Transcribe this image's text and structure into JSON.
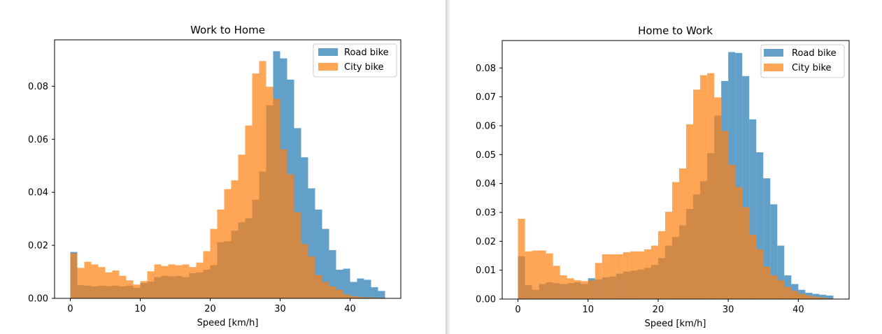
{
  "chart_data": [
    {
      "type": "histogram",
      "title": "Work to Home",
      "xlabel": "Speed [km/h]",
      "ylabel": "",
      "xlim": [
        -2.25,
        47.25
      ],
      "ylim": [
        0,
        0.0975
      ],
      "xticks": [
        0,
        10,
        20,
        30,
        40
      ],
      "yticks": [
        0.0,
        0.02,
        0.04,
        0.06,
        0.08
      ],
      "ytick_labels": [
        "0.00",
        "0.02",
        "0.04",
        "0.06",
        "0.08"
      ],
      "bin_start": 0,
      "bin_width": 1,
      "legend_position": "top-right",
      "series": [
        {
          "name": "Road bike",
          "color": "#1f77b4",
          "opacity": 0.7,
          "values": [
            0.0175,
            0.005,
            0.0048,
            0.0045,
            0.0048,
            0.0046,
            0.0048,
            0.0045,
            0.0048,
            0.004,
            0.0058,
            0.0063,
            0.008,
            0.0085,
            0.0083,
            0.0085,
            0.008,
            0.0095,
            0.0098,
            0.0108,
            0.0125,
            0.0212,
            0.0215,
            0.0255,
            0.0287,
            0.0302,
            0.0372,
            0.0478,
            0.0728,
            0.0932,
            0.0905,
            0.0825,
            0.0642,
            0.0532,
            0.0415,
            0.0335,
            0.0262,
            0.0182,
            0.0108,
            0.0112,
            0.0062,
            0.0075,
            0.007,
            0.0042,
            0.0028
          ]
        },
        {
          "name": "City bike",
          "color": "#ff7f0e",
          "opacity": 0.7,
          "values": [
            0.017,
            0.0115,
            0.0138,
            0.0128,
            0.0118,
            0.0098,
            0.0105,
            0.0085,
            0.0068,
            0.0052,
            0.0065,
            0.0102,
            0.0128,
            0.0122,
            0.0128,
            0.0125,
            0.0128,
            0.0118,
            0.0135,
            0.0178,
            0.0262,
            0.0335,
            0.0412,
            0.0445,
            0.0542,
            0.0652,
            0.0848,
            0.0895,
            0.0798,
            0.0752,
            0.0562,
            0.0468,
            0.0325,
            0.0205,
            0.0158,
            0.0088,
            0.0062,
            0.0045,
            0.0032,
            0.0015,
            0.0008,
            0.0005,
            0.0004,
            0.0003,
            0.0002
          ]
        }
      ]
    },
    {
      "type": "histogram",
      "title": "Home to Work",
      "xlabel": "Speed [km/h]",
      "ylabel": "",
      "xlim": [
        -2.25,
        47.25
      ],
      "ylim": [
        0,
        0.0895
      ],
      "xticks": [
        0,
        10,
        20,
        30,
        40
      ],
      "yticks": [
        0.0,
        0.01,
        0.02,
        0.03,
        0.04,
        0.05,
        0.06,
        0.07,
        0.08
      ],
      "ytick_labels": [
        "0.00",
        "0.01",
        "0.02",
        "0.03",
        "0.04",
        "0.05",
        "0.06",
        "0.07",
        "0.08"
      ],
      "bin_start": 0,
      "bin_width": 1,
      "legend_position": "top-right",
      "series": [
        {
          "name": "Road bike",
          "color": "#1f77b4",
          "opacity": 0.7,
          "values": [
            0.0148,
            0.0048,
            0.0032,
            0.0052,
            0.0058,
            0.0055,
            0.0052,
            0.0055,
            0.0058,
            0.0052,
            0.0072,
            0.0068,
            0.0075,
            0.0078,
            0.0088,
            0.0095,
            0.0098,
            0.0102,
            0.0108,
            0.0118,
            0.0142,
            0.0185,
            0.0215,
            0.0255,
            0.0312,
            0.0362,
            0.0408,
            0.0505,
            0.0635,
            0.0755,
            0.0855,
            0.0852,
            0.0772,
            0.0622,
            0.0508,
            0.0418,
            0.0328,
            0.0185,
            0.0082,
            0.0052,
            0.0032,
            0.0022,
            0.0018,
            0.0015,
            0.0012
          ]
        },
        {
          "name": "City bike",
          "color": "#ff7f0e",
          "opacity": 0.7,
          "values": [
            0.0278,
            0.0165,
            0.0168,
            0.0168,
            0.0158,
            0.0115,
            0.0082,
            0.0072,
            0.0065,
            0.0062,
            0.0065,
            0.0125,
            0.0155,
            0.0155,
            0.0155,
            0.0162,
            0.0165,
            0.0165,
            0.0172,
            0.0185,
            0.0235,
            0.0302,
            0.0405,
            0.0452,
            0.0605,
            0.0725,
            0.0775,
            0.0782,
            0.0698,
            0.0582,
            0.0465,
            0.0388,
            0.0318,
            0.0222,
            0.0172,
            0.0112,
            0.0082,
            0.0065,
            0.0042,
            0.0028,
            0.0018,
            0.0012,
            0.0008,
            0.0005,
            0.0002
          ]
        }
      ]
    }
  ]
}
